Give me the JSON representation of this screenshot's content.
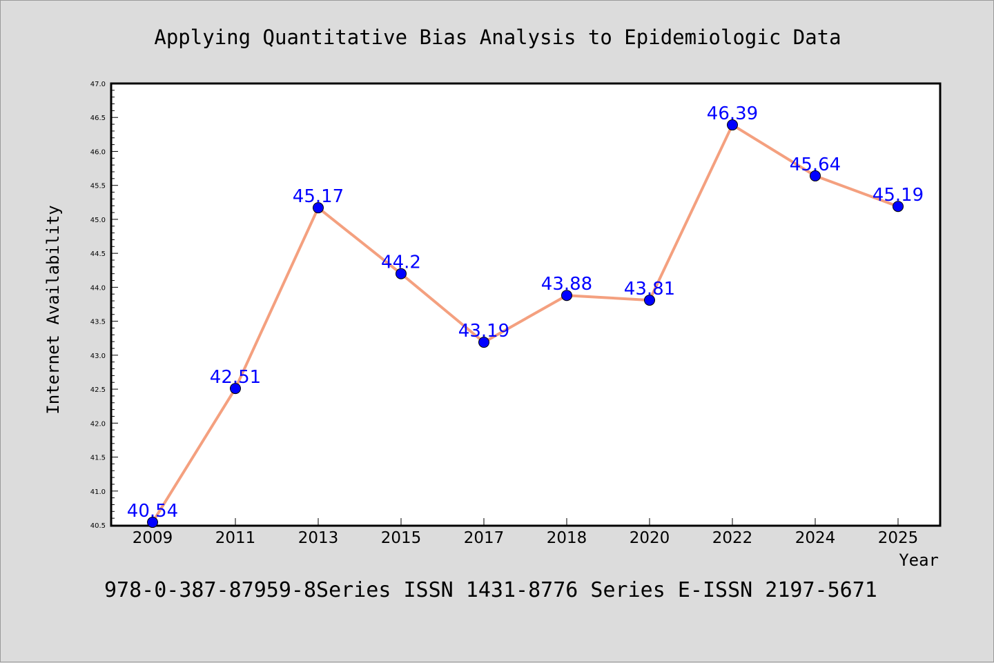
{
  "chart_data": {
    "type": "line",
    "title": "Applying Quantitative Bias Analysis to Epidemiologic Data",
    "xlabel": "Year",
    "ylabel": "Internet Availability",
    "categories": [
      "2009",
      "2011",
      "2013",
      "2015",
      "2017",
      "2018",
      "2020",
      "2022",
      "2024",
      "2025"
    ],
    "series": [
      {
        "values": [
          40.54,
          42.51,
          45.17,
          44.2,
          43.19,
          43.88,
          43.81,
          46.39,
          45.64,
          45.19
        ],
        "data_labels": [
          "40.54",
          "42.51",
          "45.17",
          "44.2",
          "43.19",
          "43.88",
          "43.81",
          "46.39",
          "45.64",
          "45.19"
        ],
        "line_color": "#f4a07f",
        "marker_color": "#0000ff",
        "label_color": "#0000ff"
      }
    ],
    "ylim": [
      40.5,
      47.0
    ],
    "yticks": [
      "40.5",
      "41.0",
      "41.5",
      "42.0",
      "42.5",
      "43.0",
      "43.5",
      "44.0",
      "44.5",
      "45.0",
      "45.5",
      "46.0",
      "46.5",
      "47.0"
    ],
    "grid": false,
    "legend": "none",
    "footer": "978-0-387-87959-8Series ISSN 1431-8776 Series E-ISSN 2197-5671",
    "colors": {
      "background": "#dcdcdc",
      "plot_area": "#ffffff",
      "axes": "#000000"
    }
  }
}
